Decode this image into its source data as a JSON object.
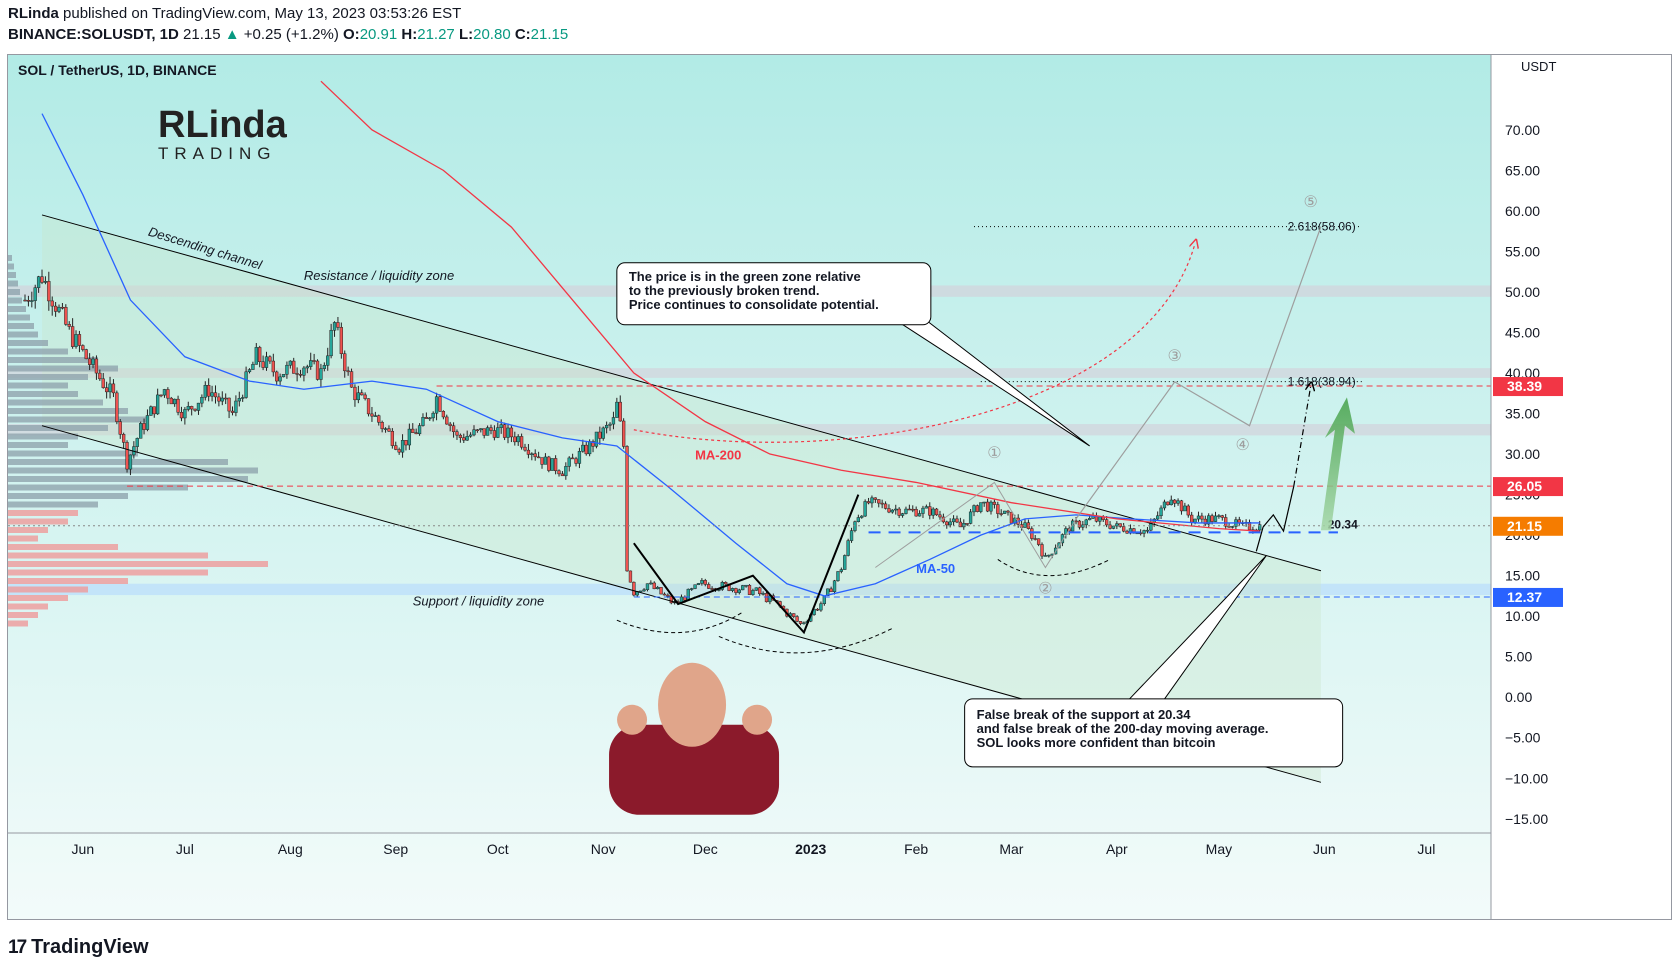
{
  "header": {
    "author": "RLinda",
    "published": "published on TradingView.com, May 13, 2023 03:53:26 EST",
    "symbol": "BINANCE:SOLUSDT, 1D",
    "last": "21.15",
    "change": "+0.25 (+1.2%)",
    "o_label": "O:",
    "o": "20.91",
    "h_label": "H:",
    "h": "21.27",
    "l_label": "L:",
    "l": "20.80",
    "c_label": "C:",
    "c": "21.15"
  },
  "footer": {
    "brand": "TradingView",
    "mark": "17"
  },
  "chart_data": {
    "type": "line",
    "title": "SOL / TetherUS, 1D, BINANCE",
    "currency": "USDT",
    "ylim": [
      -17,
      78
    ],
    "y_ticks": [
      70,
      65,
      60,
      55,
      50,
      45,
      40,
      35,
      30,
      25,
      20,
      15,
      10,
      5,
      0,
      -5,
      -10,
      -15
    ],
    "y_tick_labels": [
      "70.00",
      "65.00",
      "60.00",
      "55.00",
      "50.00",
      "45.00",
      "40.00",
      "35.00",
      "30.00",
      "25.00",
      "20.00",
      "15.00",
      "10.00",
      "5.00",
      "0.00",
      "−5.00",
      "−10.00",
      "−15.00"
    ],
    "x_range": [
      "2022-05-10",
      "2023-07-20"
    ],
    "x_ticks": [
      {
        "date": "2022-06-01",
        "label": "Jun",
        "bold": false
      },
      {
        "date": "2022-07-01",
        "label": "Jul",
        "bold": false
      },
      {
        "date": "2022-08-01",
        "label": "Aug",
        "bold": false
      },
      {
        "date": "2022-09-01",
        "label": "Sep",
        "bold": false
      },
      {
        "date": "2022-10-01",
        "label": "Oct",
        "bold": false
      },
      {
        "date": "2022-11-01",
        "label": "Nov",
        "bold": false
      },
      {
        "date": "2022-12-01",
        "label": "Dec",
        "bold": false
      },
      {
        "date": "2023-01-01",
        "label": "2023",
        "bold": true
      },
      {
        "date": "2023-02-01",
        "label": "Feb",
        "bold": false
      },
      {
        "date": "2023-03-01",
        "label": "Mar",
        "bold": false
      },
      {
        "date": "2023-04-01",
        "label": "Apr",
        "bold": false
      },
      {
        "date": "2023-05-01",
        "label": "May",
        "bold": false
      },
      {
        "date": "2023-06-01",
        "label": "Jun",
        "bold": false
      },
      {
        "date": "2023-07-01",
        "label": "Jul",
        "bold": false
      }
    ],
    "price_labels": [
      {
        "value": 38.39,
        "text": "38.39",
        "color": "#f23645"
      },
      {
        "value": 26.05,
        "text": "26.05",
        "color": "#f23645"
      },
      {
        "value": 21.15,
        "text": "21.15",
        "color": "#f57c00"
      },
      {
        "value": 12.37,
        "text": "12.37",
        "color": "#2962ff"
      }
    ],
    "fib_labels": [
      {
        "value": 58.06,
        "text": "2.618(58.06)"
      },
      {
        "value": 38.94,
        "text": "1.618(38.94)"
      }
    ],
    "level_20_34": "20.34",
    "zones": [
      {
        "from": 49.4,
        "to": 50.8,
        "color": "#d1d4dc"
      },
      {
        "from": 39.4,
        "to": 40.6,
        "color": "#d1d4dc"
      },
      {
        "from": 32.3,
        "to": 33.7,
        "color": "#d1d4dc"
      },
      {
        "from": 12.6,
        "to": 14.0,
        "color": "#bbdefb"
      }
    ],
    "price_series": [
      [
        "2022-05-15",
        49
      ],
      [
        "2022-05-20",
        52
      ],
      [
        "2022-05-28",
        45
      ],
      [
        "2022-06-05",
        40
      ],
      [
        "2022-06-10",
        37
      ],
      [
        "2022-06-14",
        29
      ],
      [
        "2022-06-18",
        33
      ],
      [
        "2022-06-25",
        38
      ],
      [
        "2022-07-01",
        35
      ],
      [
        "2022-07-08",
        38
      ],
      [
        "2022-07-15",
        35
      ],
      [
        "2022-07-22",
        42
      ],
      [
        "2022-07-28",
        40
      ],
      [
        "2022-08-05",
        41
      ],
      [
        "2022-08-10",
        40
      ],
      [
        "2022-08-14",
        46
      ],
      [
        "2022-08-19",
        38
      ],
      [
        "2022-08-27",
        34
      ],
      [
        "2022-09-02",
        31
      ],
      [
        "2022-09-10",
        34
      ],
      [
        "2022-09-13",
        37
      ],
      [
        "2022-09-19",
        32
      ],
      [
        "2022-09-30",
        33
      ],
      [
        "2022-10-07",
        32
      ],
      [
        "2022-10-15",
        29
      ],
      [
        "2022-10-20",
        28
      ],
      [
        "2022-10-28",
        31
      ],
      [
        "2022-11-04",
        34
      ],
      [
        "2022-11-05",
        36
      ],
      [
        "2022-11-07",
        31
      ],
      [
        "2022-11-08",
        16
      ],
      [
        "2022-11-10",
        13
      ],
      [
        "2022-11-14",
        14
      ],
      [
        "2022-11-22",
        11.5
      ],
      [
        "2022-11-30",
        14
      ],
      [
        "2022-12-10",
        13.5
      ],
      [
        "2022-12-16",
        13
      ],
      [
        "2022-12-22",
        11.5
      ],
      [
        "2022-12-29",
        9
      ],
      [
        "2023-01-05",
        12
      ],
      [
        "2023-01-10",
        16
      ],
      [
        "2023-01-14",
        22
      ],
      [
        "2023-01-18",
        24
      ],
      [
        "2023-01-28",
        23
      ],
      [
        "2023-02-05",
        23
      ],
      [
        "2023-02-14",
        21
      ],
      [
        "2023-02-20",
        24
      ],
      [
        "2023-02-25",
        23
      ],
      [
        "2023-03-05",
        21
      ],
      [
        "2023-03-09",
        19
      ],
      [
        "2023-03-11",
        17
      ],
      [
        "2023-03-18",
        21
      ],
      [
        "2023-03-25",
        22
      ],
      [
        "2023-04-01",
        21
      ],
      [
        "2023-04-10",
        20.5
      ],
      [
        "2023-04-17",
        25
      ],
      [
        "2023-04-23",
        22
      ],
      [
        "2023-05-01",
        22
      ],
      [
        "2023-05-08",
        21
      ],
      [
        "2023-05-13",
        21.15
      ]
    ],
    "ma50": [
      [
        "2022-05-20",
        72
      ],
      [
        "2022-06-01",
        62
      ],
      [
        "2022-06-15",
        49
      ],
      [
        "2022-07-01",
        42
      ],
      [
        "2022-07-20",
        39
      ],
      [
        "2022-08-05",
        38
      ],
      [
        "2022-08-25",
        39
      ],
      [
        "2022-09-10",
        38
      ],
      [
        "2022-10-01",
        34
      ],
      [
        "2022-10-20",
        32
      ],
      [
        "2022-11-05",
        31
      ],
      [
        "2022-11-20",
        26
      ],
      [
        "2022-12-10",
        19
      ],
      [
        "2022-12-25",
        14
      ],
      [
        "2023-01-05",
        12.5
      ],
      [
        "2023-01-20",
        14
      ],
      [
        "2023-02-05",
        17
      ],
      [
        "2023-02-20",
        20
      ],
      [
        "2023-03-05",
        22
      ],
      [
        "2023-03-20",
        22.5
      ],
      [
        "2023-04-05",
        22
      ],
      [
        "2023-04-25",
        21.5
      ],
      [
        "2023-05-13",
        21.5
      ]
    ],
    "ma200": [
      [
        "2022-08-10",
        76
      ],
      [
        "2022-08-25",
        70
      ],
      [
        "2022-09-15",
        65
      ],
      [
        "2022-10-05",
        58
      ],
      [
        "2022-10-25",
        48
      ],
      [
        "2022-11-10",
        40
      ],
      [
        "2022-12-01",
        34
      ],
      [
        "2022-12-20",
        30
      ],
      [
        "2023-01-10",
        28
      ],
      [
        "2023-02-01",
        26.5
      ],
      [
        "2023-03-01",
        24
      ],
      [
        "2023-04-01",
        22
      ],
      [
        "2023-05-01",
        20.8
      ],
      [
        "2023-05-13",
        20.5
      ]
    ],
    "channel_upper": [
      [
        "2022-05-20",
        59.5
      ],
      [
        "2023-05-31",
        15.6
      ]
    ],
    "channel_lower": [
      [
        "2022-05-20",
        33.5
      ],
      [
        "2023-05-31",
        -10.5
      ]
    ],
    "labels": {
      "ma200": "MA-200",
      "ma50": "MA-50",
      "channel": "Descending channel",
      "resistance": "Resistance / liquidity zone",
      "support": "Support / liquidity zone"
    },
    "waves": [
      "①",
      "②",
      "③",
      "④",
      "⑤"
    ],
    "callouts": [
      "The price is in the green zone relative",
      "to the previously broken trend.",
      "Price continues to consolidate potential."
    ],
    "callouts2": [
      "False break of the support at 20.34",
      "and false break of the 200-day moving average.",
      "SOL looks more confident than bitcoin"
    ],
    "watermark": {
      "top": "RLinda",
      "bottom": "TRADING"
    }
  }
}
